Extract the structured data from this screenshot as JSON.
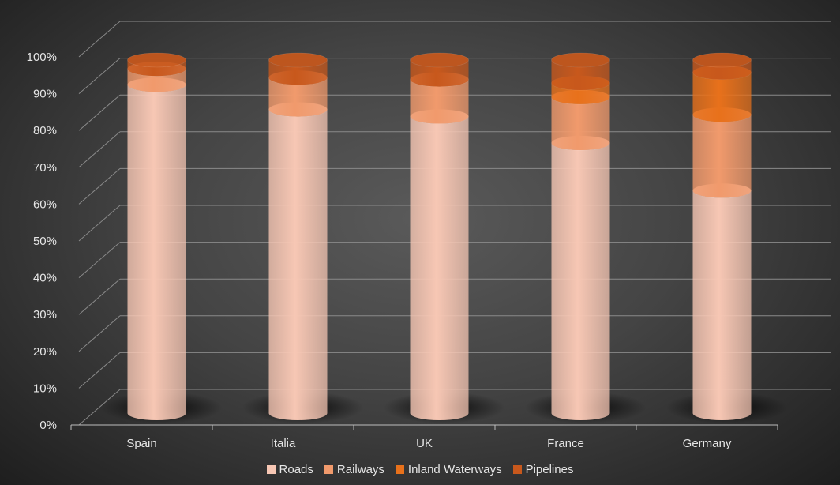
{
  "chart_data": {
    "type": "bar",
    "variant": "100% stacked cylinder (3D)",
    "categories": [
      "Spain",
      "Italia",
      "UK",
      "France",
      "Germany"
    ],
    "series": [
      {
        "name": "Roads",
        "values": [
          93,
          86,
          84,
          76.5,
          63
        ],
        "color": "#f7c7b4"
      },
      {
        "name": "Railways",
        "values": [
          4.5,
          9,
          10.5,
          13,
          21.5
        ],
        "color": "#f19a6c"
      },
      {
        "name": "Inland Waterways",
        "values": [
          0,
          0,
          0,
          4,
          12
        ],
        "color": "#e8711b"
      },
      {
        "name": "Pipelines",
        "values": [
          2.5,
          5,
          5.5,
          6.5,
          3.5
        ],
        "color": "#c8581c"
      }
    ],
    "y_ticks": [
      "0%",
      "10%",
      "20%",
      "30%",
      "40%",
      "50%",
      "60%",
      "70%",
      "80%",
      "90%",
      "100%"
    ],
    "ylim": [
      0,
      100
    ],
    "grid": true,
    "legend_position": "bottom",
    "title": "",
    "xlabel": "",
    "ylabel": ""
  }
}
